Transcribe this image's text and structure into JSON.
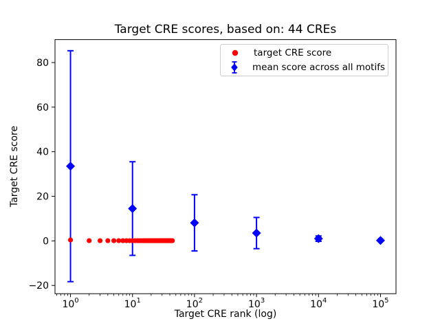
{
  "figure": {
    "title": "Target CRE scores, based on: 44 CREs",
    "xlabel": "Target CRE rank (log)",
    "ylabel": "Target CRE score",
    "background_color": "#ffffff",
    "spine_color": "#000000",
    "legend_border_color": "#cccccc"
  },
  "chart_data": {
    "type": "scatter",
    "title": "Target CRE scores, based on: 44 CREs",
    "xlabel": "Target CRE rank (log)",
    "ylabel": "Target CRE score",
    "x_scale": "log",
    "xlim": [
      0.5623,
      177828
    ],
    "ylim": [
      -23.7,
      90.3
    ],
    "xticks": [
      1,
      10,
      100,
      1000,
      10000,
      100000
    ],
    "xtick_labels": [
      "10^0",
      "10^1",
      "10^2",
      "10^3",
      "10^4",
      "10^5"
    ],
    "yticks": [
      -20,
      0,
      20,
      40,
      60,
      80
    ],
    "ytick_labels": [
      "−20",
      "0",
      "20",
      "40",
      "60",
      "80"
    ],
    "grid": false,
    "legend_position": "upper right",
    "series": [
      {
        "name": "target CRE score",
        "marker": "circle",
        "color": "#ff0000",
        "x": [
          1,
          2,
          3,
          4,
          5,
          6,
          7,
          8,
          9,
          10,
          11,
          12,
          13,
          14,
          15,
          16,
          17,
          18,
          19,
          20,
          21,
          22,
          23,
          24,
          25,
          26,
          27,
          28,
          29,
          30,
          31,
          32,
          33,
          34,
          35,
          36,
          37,
          38,
          39,
          40,
          41,
          42,
          43,
          44
        ],
        "y": [
          0.4,
          0.1,
          0.1,
          0.1,
          0.1,
          0.1,
          0.1,
          0.1,
          0.1,
          0.1,
          0.1,
          0.1,
          0.1,
          0.1,
          0.1,
          0.1,
          0.1,
          0.1,
          0.1,
          0.1,
          0.1,
          0.1,
          0.1,
          0.1,
          0.1,
          0.1,
          0.1,
          0.1,
          0.1,
          0.1,
          0.1,
          0.1,
          0.1,
          0.1,
          0.1,
          0.1,
          0.1,
          0.1,
          0.1,
          0.1,
          0.1,
          0.1,
          0.1,
          0.1
        ]
      },
      {
        "name": "mean score across all motifs",
        "marker": "diamond",
        "color": "#0000ff",
        "x": [
          1,
          10,
          100,
          1000,
          10000,
          100000
        ],
        "y": [
          33.5,
          14.5,
          8.1,
          3.5,
          1.0,
          0.2
        ],
        "yerr": [
          51.8,
          21.0,
          12.6,
          7.0,
          1.2,
          0.4
        ]
      }
    ]
  }
}
